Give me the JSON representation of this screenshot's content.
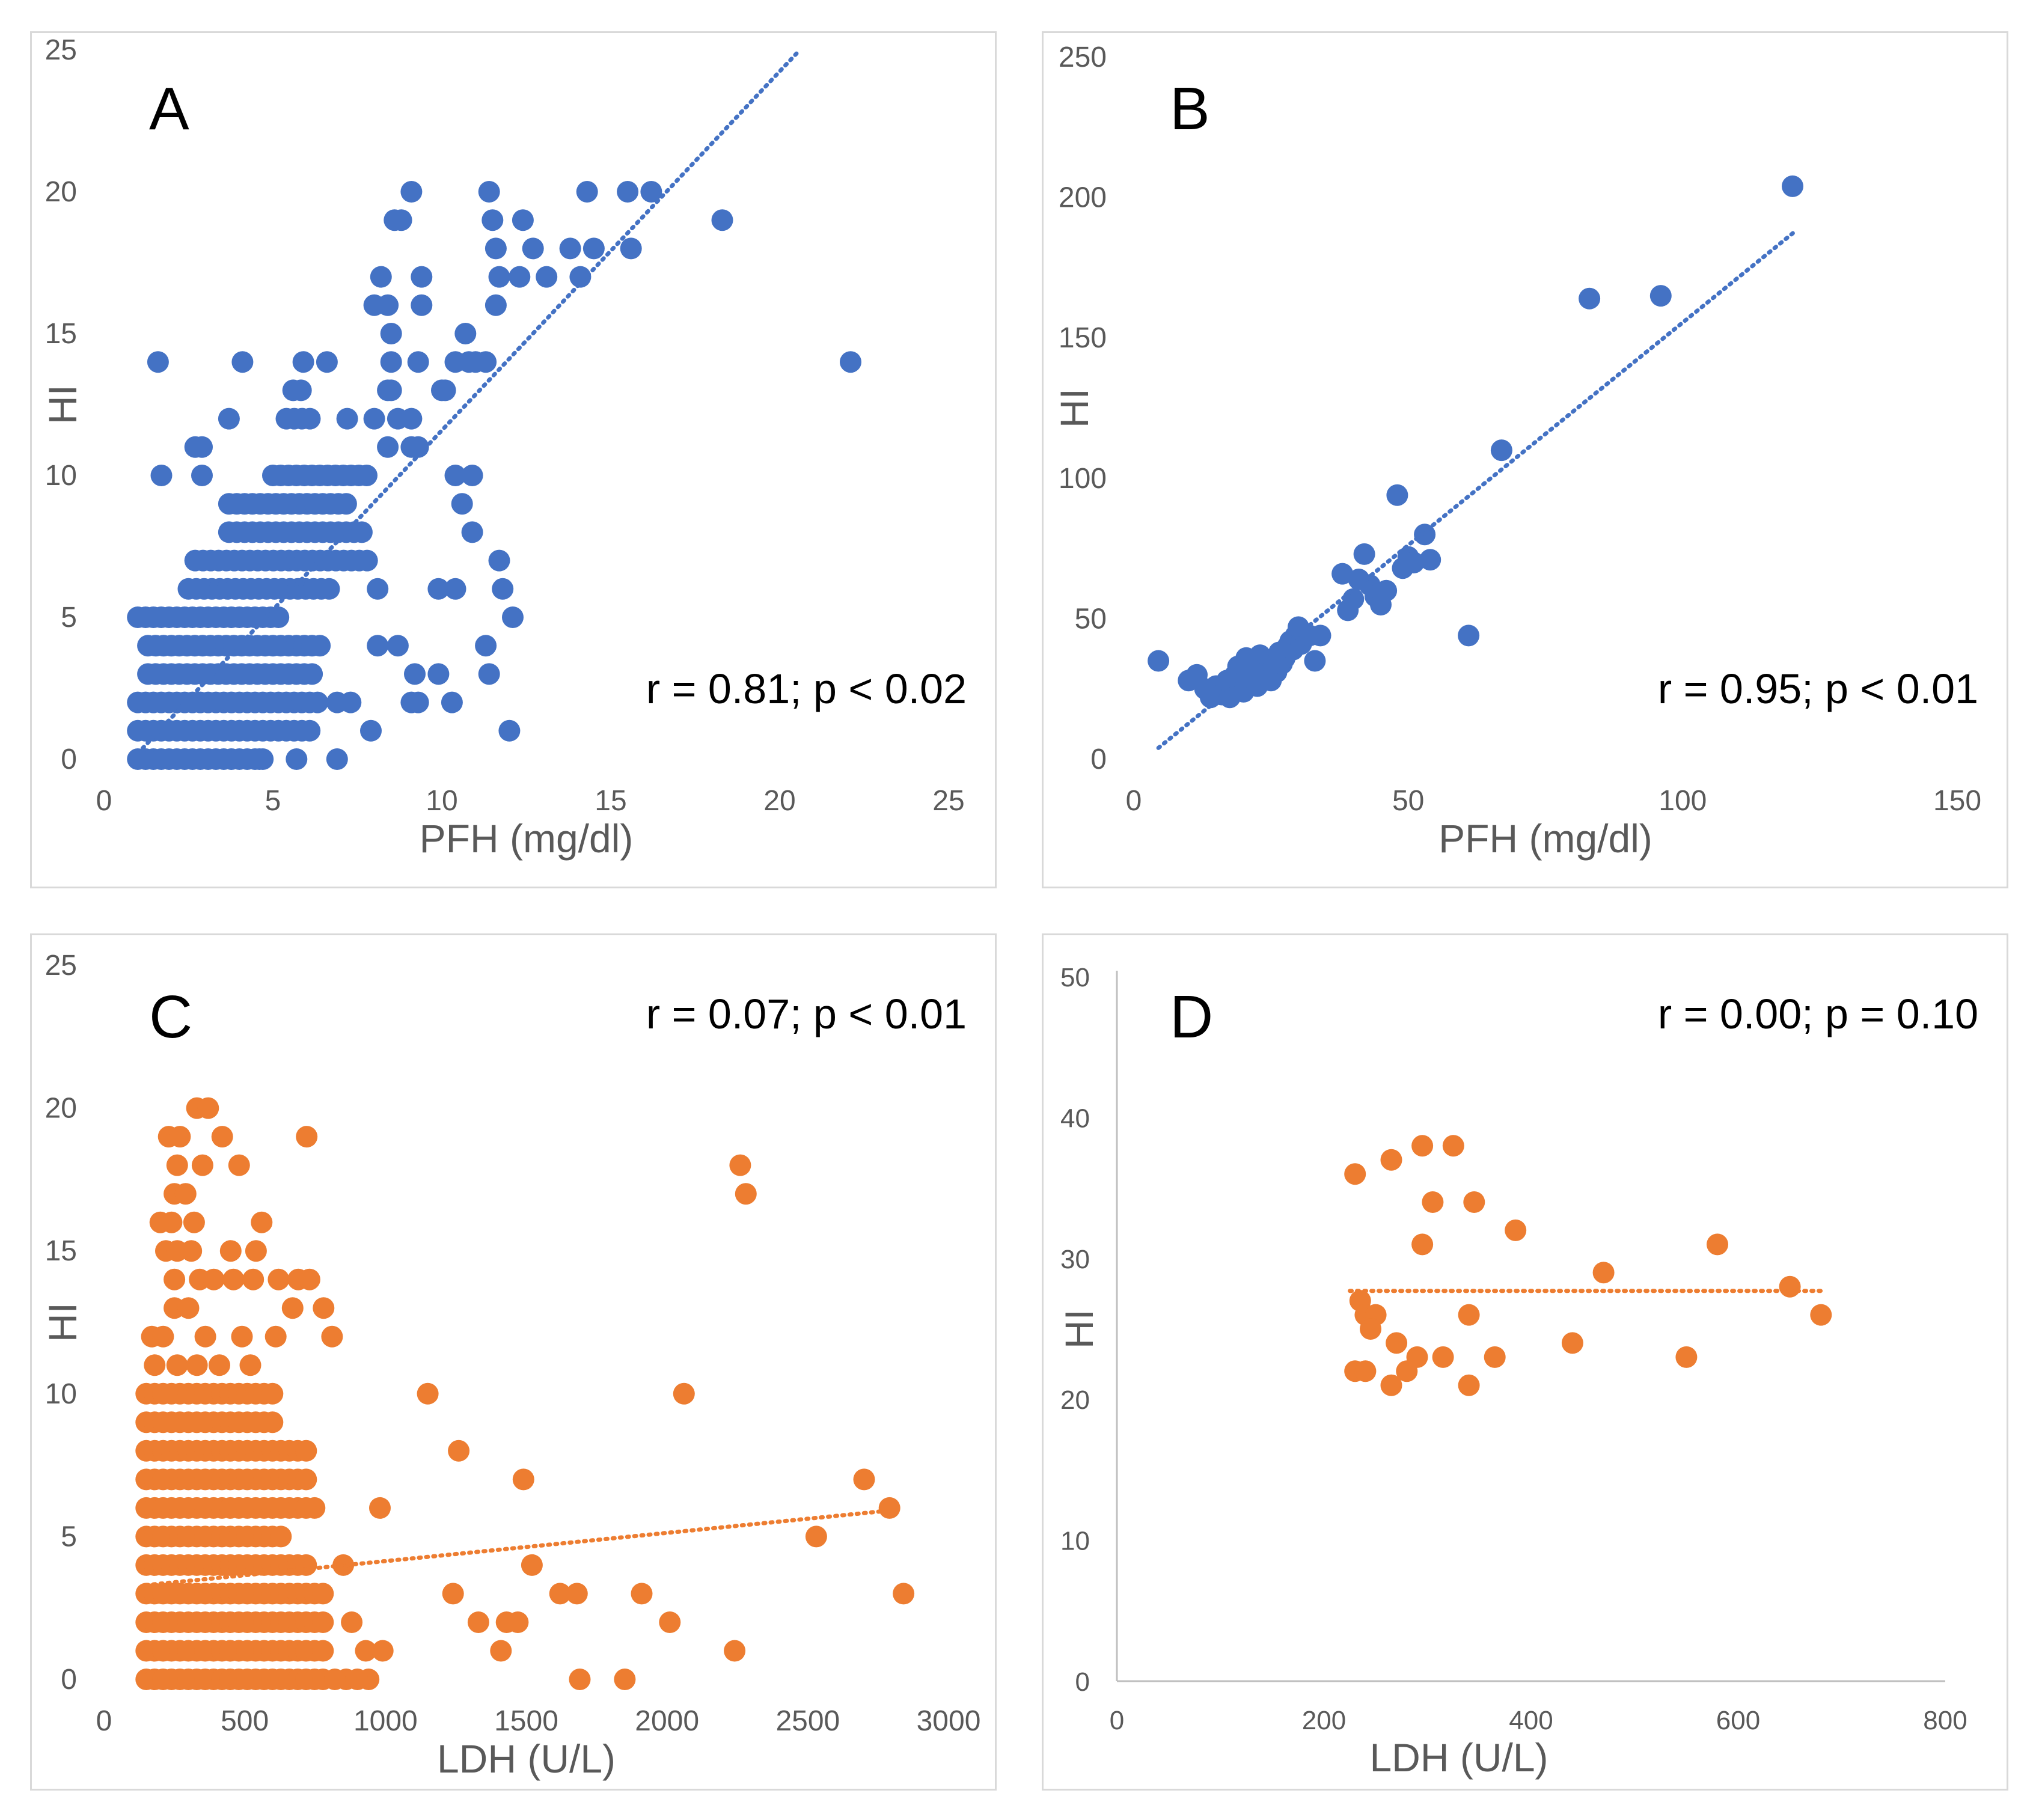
{
  "colors": {
    "blue": "#4472c4",
    "orange": "#ed7d31",
    "axis": "#bfbfbf",
    "tick_text": "#595959"
  },
  "chart_data": [
    {
      "id": "A",
      "type": "scatter",
      "series_color": "blue",
      "panel_label": "A",
      "xlabel": "PFH (mg/dl)",
      "ylabel": "HI",
      "xlim": [
        0,
        25
      ],
      "ylim": [
        0,
        25
      ],
      "xticks": [
        0,
        5,
        10,
        15,
        20,
        25
      ],
      "yticks": [
        0,
        5,
        10,
        15,
        20,
        25
      ],
      "annotation": "r = 0.81; p < 0.02",
      "annotation_pos": "bottom-right",
      "trendline": {
        "style": "dotted",
        "x": [
          1.0,
          20.6
        ],
        "y": [
          0.2,
          25.0
        ]
      },
      "points": [
        [
          1.6,
          14
        ],
        [
          4.1,
          14
        ],
        [
          5.9,
          14
        ],
        [
          6.6,
          14
        ],
        [
          22.1,
          14
        ],
        [
          1.7,
          10
        ],
        [
          2.9,
          10
        ],
        [
          3.7,
          12
        ],
        [
          2.7,
          11
        ],
        [
          2.9,
          11
        ],
        [
          8.4,
          11
        ],
        [
          9.1,
          11
        ],
        [
          9.3,
          11
        ],
        [
          9.1,
          20
        ],
        [
          11.4,
          20
        ],
        [
          14.3,
          20
        ],
        [
          15.5,
          20
        ],
        [
          16.2,
          20
        ],
        [
          8.6,
          19
        ],
        [
          8.8,
          19
        ],
        [
          11.5,
          19
        ],
        [
          12.4,
          19
        ],
        [
          18.3,
          19
        ],
        [
          11.6,
          18
        ],
        [
          12.7,
          18
        ],
        [
          13.8,
          18
        ],
        [
          14.5,
          18
        ],
        [
          15.6,
          18
        ],
        [
          8.2,
          17
        ],
        [
          9.4,
          17
        ],
        [
          11.7,
          17
        ],
        [
          12.3,
          17
        ],
        [
          13.1,
          17
        ],
        [
          14.1,
          17
        ],
        [
          8.0,
          16
        ],
        [
          8.4,
          16
        ],
        [
          9.4,
          16
        ],
        [
          11.6,
          16
        ],
        [
          8.5,
          15
        ],
        [
          10.7,
          15
        ],
        [
          8.5,
          14
        ],
        [
          9.3,
          14
        ],
        [
          10.4,
          14
        ],
        [
          10.8,
          14
        ],
        [
          11.0,
          14
        ],
        [
          11.3,
          14
        ],
        [
          8.4,
          13
        ],
        [
          8.5,
          13
        ],
        [
          10.0,
          13
        ],
        [
          10.1,
          13
        ],
        [
          8.0,
          12
        ],
        [
          8.7,
          12
        ],
        [
          9.1,
          12
        ],
        [
          7.2,
          12
        ],
        [
          10.4,
          10
        ],
        [
          10.9,
          10
        ],
        [
          10.6,
          9
        ],
        [
          10.9,
          8
        ],
        [
          11.7,
          7
        ],
        [
          9.9,
          6
        ],
        [
          10.4,
          6
        ],
        [
          11.8,
          6
        ],
        [
          12.1,
          5
        ],
        [
          8.1,
          4
        ],
        [
          8.7,
          4
        ],
        [
          11.3,
          4
        ],
        [
          9.2,
          3
        ],
        [
          9.9,
          3
        ],
        [
          11.4,
          3
        ],
        [
          9.1,
          2
        ],
        [
          9.3,
          2
        ],
        [
          10.3,
          2
        ],
        [
          6.9,
          2
        ],
        [
          7.3,
          2
        ],
        [
          12.0,
          1
        ],
        [
          7.9,
          1
        ],
        [
          8.1,
          6
        ],
        [
          5.7,
          0
        ],
        [
          6.9,
          0
        ],
        [
          4.6,
          0
        ]
      ],
      "dense_bands": [
        [
          0,
          1.0,
          4.8
        ],
        [
          1,
          1.0,
          6.2
        ],
        [
          2,
          1.0,
          6.4
        ],
        [
          3,
          1.3,
          6.2
        ],
        [
          4,
          1.3,
          6.4
        ],
        [
          5,
          1.0,
          5.2
        ],
        [
          6,
          2.5,
          6.7
        ],
        [
          7,
          2.7,
          7.8
        ],
        [
          8,
          3.7,
          7.8
        ],
        [
          9,
          3.7,
          7.4
        ],
        [
          10,
          5.0,
          8.0
        ],
        [
          12,
          5.4,
          6.2
        ],
        [
          13,
          5.6,
          5.9
        ]
      ]
    },
    {
      "id": "B",
      "type": "scatter",
      "series_color": "blue",
      "panel_label": "B",
      "xlabel": "PFH (mg/dl)",
      "ylabel": "HI",
      "xlim": [
        0,
        150
      ],
      "ylim": [
        0,
        250
      ],
      "xticks": [
        0,
        50,
        100,
        150
      ],
      "yticks": [
        0,
        50,
        100,
        150,
        200,
        250
      ],
      "annotation": "r = 0.95; p < 0.01",
      "annotation_pos": "bottom-right",
      "trendline": {
        "style": "dotted",
        "x": [
          4.5,
          120.5
        ],
        "y": [
          4.0,
          188.0
        ]
      },
      "points": [
        [
          4.5,
          35
        ],
        [
          10,
          28
        ],
        [
          11.5,
          30
        ],
        [
          13,
          25
        ],
        [
          14,
          22
        ],
        [
          15,
          26
        ],
        [
          16,
          23
        ],
        [
          17,
          28
        ],
        [
          17.5,
          22
        ],
        [
          18,
          25
        ],
        [
          18.5,
          30
        ],
        [
          19,
          33
        ],
        [
          19.5,
          27
        ],
        [
          20,
          24
        ],
        [
          20.5,
          36
        ],
        [
          21,
          31
        ],
        [
          21.5,
          29
        ],
        [
          22,
          34
        ],
        [
          22.5,
          26
        ],
        [
          23,
          37
        ],
        [
          23.5,
          32
        ],
        [
          24,
          30
        ],
        [
          24.5,
          35
        ],
        [
          25,
          28
        ],
        [
          25.5,
          33
        ],
        [
          26,
          31
        ],
        [
          26.5,
          38
        ],
        [
          27,
          34
        ],
        [
          27.5,
          36
        ],
        [
          28,
          40
        ],
        [
          28.5,
          42
        ],
        [
          29,
          39
        ],
        [
          29.5,
          44
        ],
        [
          30,
          47
        ],
        [
          30.5,
          41
        ],
        [
          31,
          43
        ],
        [
          32,
          44
        ],
        [
          33,
          35
        ],
        [
          34,
          44
        ],
        [
          38,
          66
        ],
        [
          39,
          53
        ],
        [
          40,
          57
        ],
        [
          41,
          64
        ],
        [
          42,
          73
        ],
        [
          43,
          62
        ],
        [
          44,
          58
        ],
        [
          45,
          55
        ],
        [
          46,
          60
        ],
        [
          48,
          94
        ],
        [
          49,
          68
        ],
        [
          50,
          72
        ],
        [
          51,
          70
        ],
        [
          53,
          80
        ],
        [
          54,
          71
        ],
        [
          61,
          44
        ],
        [
          67,
          110
        ],
        [
          83,
          164
        ],
        [
          96,
          165
        ],
        [
          120,
          204
        ]
      ]
    },
    {
      "id": "C",
      "type": "scatter",
      "series_color": "orange",
      "panel_label": "C",
      "xlabel": "LDH (U/L)",
      "ylabel": "HI",
      "xlim": [
        0,
        3000
      ],
      "ylim": [
        0,
        25
      ],
      "xticks": [
        0,
        500,
        1000,
        1500,
        2000,
        2500,
        3000
      ],
      "yticks": [
        0,
        5,
        10,
        15,
        20,
        25
      ],
      "annotation": "r = 0.07; p < 0.01",
      "annotation_pos": "top-right",
      "trendline": {
        "style": "dotted",
        "x": [
          150,
          2780
        ],
        "y": [
          3.3,
          5.9
        ]
      },
      "points": [
        [
          330,
          20
        ],
        [
          370,
          20
        ],
        [
          230,
          19
        ],
        [
          270,
          19
        ],
        [
          420,
          19
        ],
        [
          720,
          19
        ],
        [
          260,
          18
        ],
        [
          350,
          18
        ],
        [
          480,
          18
        ],
        [
          2260,
          18
        ],
        [
          250,
          17
        ],
        [
          290,
          17
        ],
        [
          2280,
          17
        ],
        [
          200,
          16
        ],
        [
          240,
          16
        ],
        [
          320,
          16
        ],
        [
          560,
          16
        ],
        [
          220,
          15
        ],
        [
          260,
          15
        ],
        [
          310,
          15
        ],
        [
          450,
          15
        ],
        [
          540,
          15
        ],
        [
          250,
          14
        ],
        [
          340,
          14
        ],
        [
          390,
          14
        ],
        [
          460,
          14
        ],
        [
          530,
          14
        ],
        [
          620,
          14
        ],
        [
          690,
          14
        ],
        [
          730,
          14
        ],
        [
          670,
          13
        ],
        [
          780,
          13
        ],
        [
          250,
          13
        ],
        [
          300,
          13
        ],
        [
          810,
          12
        ],
        [
          360,
          12
        ],
        [
          490,
          12
        ],
        [
          610,
          12
        ],
        [
          170,
          12
        ],
        [
          210,
          12
        ],
        [
          410,
          11
        ],
        [
          520,
          11
        ],
        [
          180,
          11
        ],
        [
          260,
          11
        ],
        [
          330,
          11
        ],
        [
          1150,
          10
        ],
        [
          2060,
          10
        ],
        [
          1260,
          8
        ],
        [
          1490,
          7
        ],
        [
          2700,
          7
        ],
        [
          980,
          6
        ],
        [
          2790,
          6
        ],
        [
          2530,
          5
        ],
        [
          850,
          4
        ],
        [
          1520,
          4
        ],
        [
          2840,
          3
        ],
        [
          1240,
          3
        ],
        [
          1620,
          3
        ],
        [
          1680,
          3
        ],
        [
          1910,
          3
        ],
        [
          880,
          2
        ],
        [
          1330,
          2
        ],
        [
          1430,
          2
        ],
        [
          1470,
          2
        ],
        [
          2010,
          2
        ],
        [
          930,
          1
        ],
        [
          990,
          1
        ],
        [
          1410,
          1
        ],
        [
          2240,
          1
        ],
        [
          1690,
          0
        ],
        [
          1850,
          0
        ],
        [
          940,
          0
        ],
        [
          900,
          0
        ],
        [
          860,
          0
        ],
        [
          820,
          0
        ]
      ],
      "dense_bands": [
        [
          0,
          150,
          800
        ],
        [
          1,
          150,
          800
        ],
        [
          2,
          150,
          780
        ],
        [
          3,
          150,
          780
        ],
        [
          4,
          150,
          720
        ],
        [
          5,
          150,
          650
        ],
        [
          6,
          150,
          750
        ],
        [
          7,
          150,
          740
        ],
        [
          8,
          150,
          740
        ],
        [
          9,
          150,
          620
        ],
        [
          10,
          150,
          610
        ]
      ]
    },
    {
      "id": "D",
      "type": "scatter",
      "series_color": "orange",
      "panel_label": "D",
      "xlabel": "LDH (U/L)",
      "ylabel": "HI",
      "xlim": [
        0,
        800
      ],
      "ylim": [
        0,
        50
      ],
      "xticks": [
        0,
        200,
        400,
        600,
        800
      ],
      "yticks": [
        0,
        10,
        20,
        30,
        40,
        50
      ],
      "annotation": "r = 0.00; p = 0.10",
      "annotation_pos": "top-right",
      "trendline": {
        "style": "dotted",
        "x": [
          225,
          680
        ],
        "y": [
          27.7,
          27.7
        ]
      },
      "points": [
        [
          230,
          36
        ],
        [
          265,
          37
        ],
        [
          295,
          38
        ],
        [
          325,
          38
        ],
        [
          305,
          34
        ],
        [
          345,
          34
        ],
        [
          385,
          32
        ],
        [
          295,
          31
        ],
        [
          580,
          31
        ],
        [
          470,
          29
        ],
        [
          650,
          28
        ],
        [
          235,
          27
        ],
        [
          240,
          26
        ],
        [
          250,
          26
        ],
        [
          245,
          25
        ],
        [
          340,
          26
        ],
        [
          680,
          26
        ],
        [
          270,
          24
        ],
        [
          440,
          24
        ],
        [
          290,
          23
        ],
        [
          315,
          23
        ],
        [
          365,
          23
        ],
        [
          550,
          23
        ],
        [
          230,
          22
        ],
        [
          240,
          22
        ],
        [
          280,
          22
        ],
        [
          265,
          21
        ],
        [
          340,
          21
        ]
      ]
    }
  ]
}
